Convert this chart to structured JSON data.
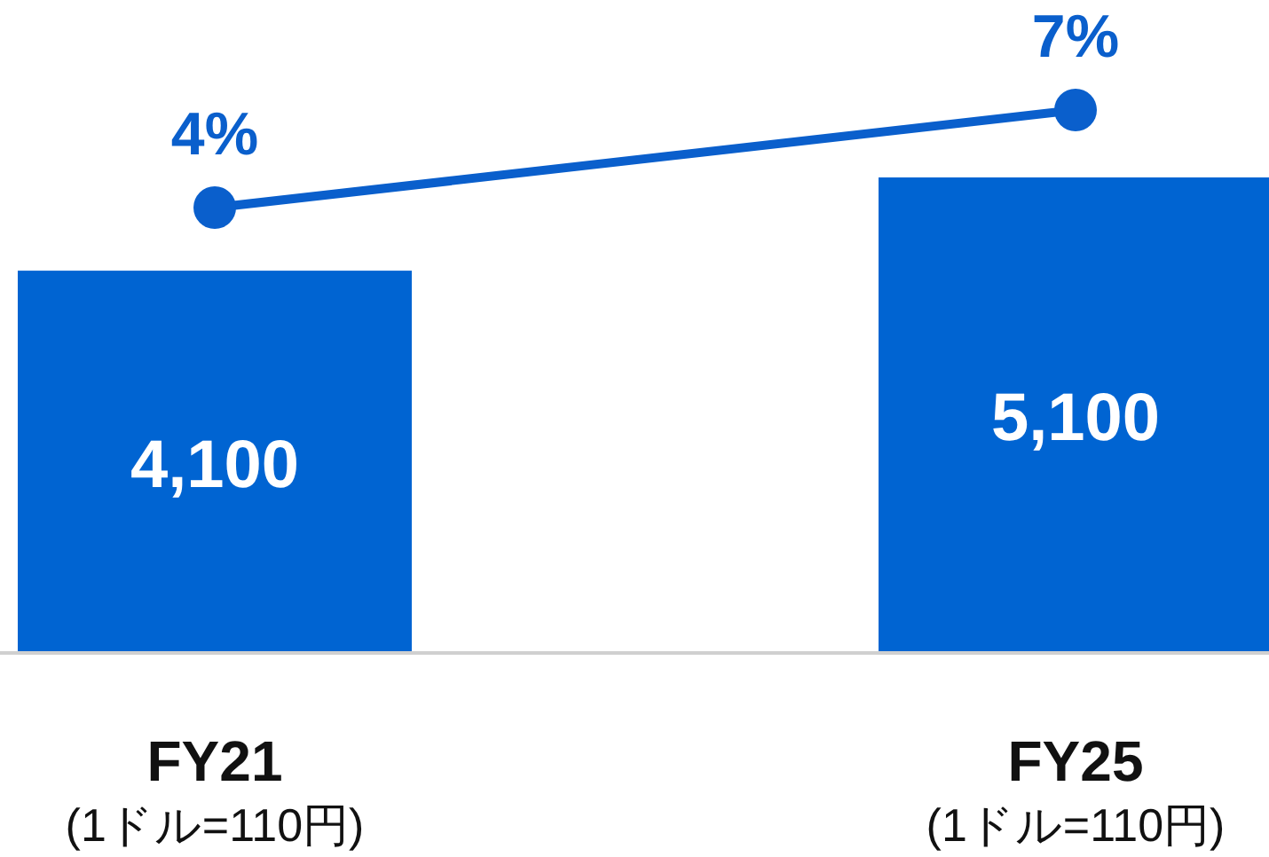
{
  "chart_data": {
    "type": "bar",
    "categories": [
      "FY21\n(1ドル=110円)",
      "FY25\n(1ドル=110円)"
    ],
    "tick_labels": "x",
    "series": [
      {
        "color": "#0064d2",
        "values": [
          4100,
          5100
        ],
        "value_labels": [
          "4,100",
          "5,100"
        ]
      },
      {
        "type": "line",
        "axis": "y2",
        "color": "#0a5fcc",
        "marker": "circle",
        "values": [
          4,
          7
        ],
        "value_labels": [
          "4%",
          "7%"
        ]
      }
    ]
  }
}
